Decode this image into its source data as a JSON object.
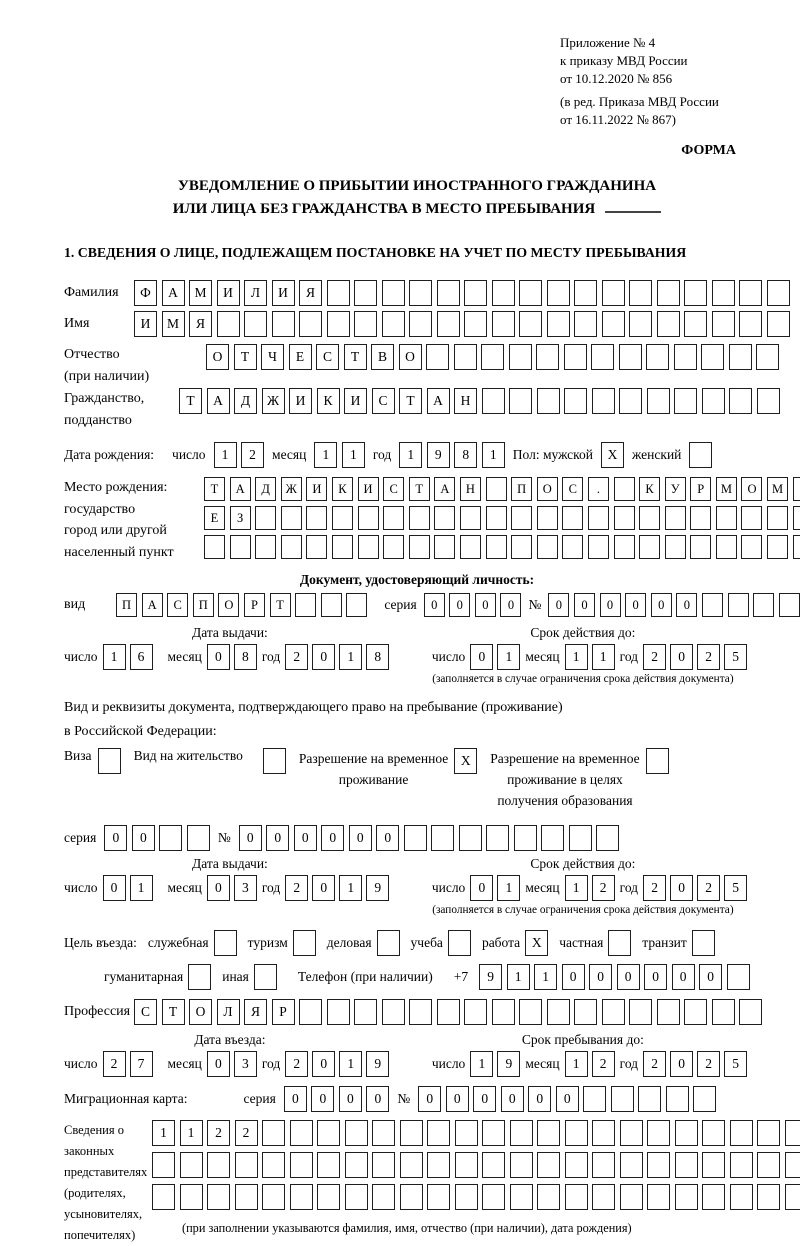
{
  "header": {
    "appendix_lines": [
      "Приложение № 4",
      "к приказу МВД России",
      "от 10.12.2020 № 856"
    ],
    "amendment_lines": [
      "(в ред. Приказа МВД России",
      "от 16.11.2022 № 867)"
    ],
    "forma": "ФОРМА"
  },
  "title": {
    "line1": "УВЕДОМЛЕНИЕ О ПРИБЫТИИ ИНОСТРАННОГО ГРАЖДАНИНА",
    "line2": "ИЛИ ЛИЦА БЕЗ ГРАЖДАНСТВА В МЕСТО ПРЕБЫВАНИЯ"
  },
  "section1": {
    "heading": "1. СВЕДЕНИЯ О ЛИЦЕ, ПОДЛЕЖАЩЕМ ПОСТАНОВКЕ НА УЧЕТ ПО МЕСТУ ПРЕБЫВАНИЯ"
  },
  "labels": {
    "family": "Фамилия",
    "name": "Имя",
    "patronymic": "Отчество",
    "patronymic_note": "(при наличии)",
    "citizenship1": "Гражданство,",
    "citizenship2": "подданство",
    "birth_date": "Дата рождения:",
    "day": "число",
    "month": "месяц",
    "year": "год",
    "sex_male": "Пол: мужской",
    "sex_female": "женский",
    "birth_place1": "Место рождения:",
    "birth_place2": "государство",
    "birth_place3": "город или другой",
    "birth_place4": "населенный пункт",
    "id_doc_heading": "Документ, удостоверяющий личность:",
    "doc_type": "вид",
    "series": "серия",
    "number_sign": "№",
    "issue_date": "Дата выдачи:",
    "valid_until": "Срок действия до:",
    "valid_note": "(заполняется в случае ограничения срока действия документа)",
    "res_doc1": "Вид и реквизиты документа, подтверждающего право на пребывание (проживание)",
    "res_doc2": "в Российской Федерации:",
    "visa": "Виза",
    "residence_permit": "Вид на жительство",
    "temp_res1": "Разрешение на временное",
    "temp_res2": "проживание",
    "temp_res_edu1": "Разрешение на временное",
    "temp_res_edu2": "проживание в целях",
    "temp_res_edu3": "получения образования",
    "purpose": "Цель въезда:",
    "p_official": "служебная",
    "p_tourism": "туризм",
    "p_business": "деловая",
    "p_study": "учеба",
    "p_work": "работа",
    "p_private": "частная",
    "p_transit": "транзит",
    "p_humanitarian": "гуманитарная",
    "p_other": "иная",
    "phone": "Телефон (при наличии)",
    "plus7": "+7",
    "profession": "Профессия",
    "entry_date": "Дата въезда:",
    "stay_until": "Срок пребывания до:",
    "migration_card": "Миграционная карта:",
    "reps1": "Сведения о",
    "reps2": "законных",
    "reps3": "представителях",
    "reps4": "(родителях,",
    "reps5": "усыновителях,",
    "reps6": "попечителях)",
    "reps_note": "(при заполнении указываются фамилия, имя, отчество (при наличии), дата рождения)"
  },
  "fields": {
    "last_name": {
      "chars": "ФАМИЛИЯ",
      "len": 24
    },
    "first_name": {
      "chars": "ИМЯ",
      "len": 24
    },
    "middle_name": {
      "chars": "ОТЧЕСТВО",
      "len": 21
    },
    "citizenship": {
      "chars": "ТАДЖИКИСТАН",
      "len": 22
    },
    "birth_day": "12",
    "birth_month": "11",
    "birth_year": "1981",
    "sex_male": {
      "chars": "X",
      "len": 1
    },
    "sex_female": {
      "chars": "",
      "len": 1
    },
    "birth_place_row1": {
      "chars": "ТАДЖИКИСТАН ПОС. КУРМОМБ",
      "len": 24
    },
    "birth_place_row2": {
      "chars": "ЕЗ",
      "len": 24
    },
    "birth_place_row3": {
      "chars": "",
      "len": 24
    },
    "id_doc_type": {
      "chars": "ПАСПОРТ",
      "len": 10
    },
    "id_doc_series": {
      "chars": "0000",
      "len": 4
    },
    "id_doc_number": {
      "chars": "000000",
      "len": 11
    },
    "id_issue_day": "16",
    "id_issue_month": "08",
    "id_issue_year": "2018",
    "id_valid_day": "01",
    "id_valid_month": "11",
    "id_valid_year": "2025",
    "visa_cb": {
      "chars": "",
      "len": 1
    },
    "residence_permit_cb": {
      "chars": "",
      "len": 1
    },
    "temp_res_cb": {
      "chars": "X",
      "len": 1
    },
    "temp_res_edu_cb": {
      "chars": "",
      "len": 1
    },
    "res_doc_series": {
      "chars": "00",
      "len": 4
    },
    "res_doc_number": {
      "chars": "000000",
      "len": 14
    },
    "res_issue_day": "01",
    "res_issue_month": "03",
    "res_issue_year": "2019",
    "res_valid_day": "01",
    "res_valid_month": "12",
    "res_valid_year": "2025",
    "purpose_official": {
      "chars": "",
      "len": 1
    },
    "purpose_tourism": {
      "chars": "",
      "len": 1
    },
    "purpose_business": {
      "chars": "",
      "len": 1
    },
    "purpose_study": {
      "chars": "",
      "len": 1
    },
    "purpose_work": {
      "chars": "X",
      "len": 1
    },
    "purpose_private": {
      "chars": "",
      "len": 1
    },
    "purpose_transit": {
      "chars": "",
      "len": 1
    },
    "purpose_humanitarian": {
      "chars": "",
      "len": 1
    },
    "purpose_other": {
      "chars": "",
      "len": 1
    },
    "phone": {
      "chars": "911000000",
      "len": 10
    },
    "profession": {
      "chars": "СТОЛЯР",
      "len": 23
    },
    "entry_day": "27",
    "entry_month": "03",
    "entry_year": "2019",
    "stay_day": "19",
    "stay_month": "12",
    "stay_year": "2025",
    "mig_card_series": {
      "chars": "0000",
      "len": 4
    },
    "mig_card_number": {
      "chars": "000000",
      "len": 11
    },
    "reps_row1": {
      "chars": "1122",
      "len": 24
    },
    "reps_row2": {
      "chars": "",
      "len": 24
    },
    "reps_row3": {
      "chars": "",
      "len": 24
    }
  }
}
